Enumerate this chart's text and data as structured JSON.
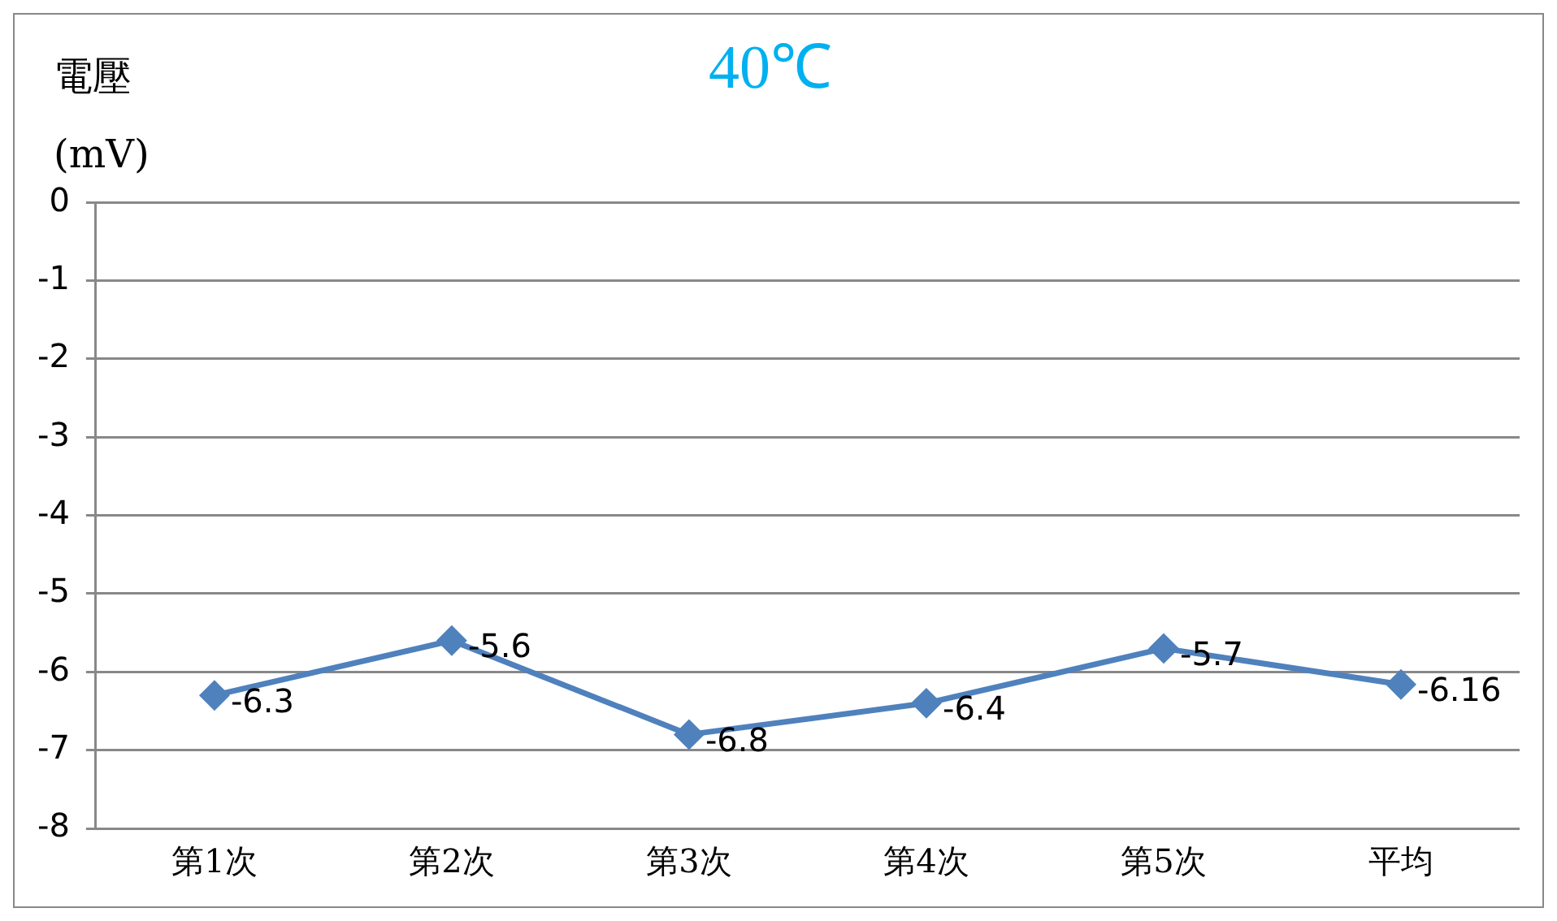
{
  "chart_data": {
    "type": "line",
    "title": "40℃",
    "ylabel": "電壓\n(mV)",
    "categories": [
      "第1次",
      "第2次",
      "第3次",
      "第4次",
      "第5次",
      "平均"
    ],
    "series": [
      {
        "color": "#4f81bd",
        "values": [
          -6.3,
          -5.6,
          -6.8,
          -6.4,
          -5.7,
          -6.16
        ]
      }
    ],
    "ylim": [
      -8,
      0
    ],
    "yticks": [
      -8,
      -7,
      -6,
      -5,
      -4,
      -3,
      -2,
      -1,
      0
    ],
    "grid": "y",
    "legend": false,
    "marker": "diamond",
    "line_style": "solid",
    "data_labels": true
  }
}
